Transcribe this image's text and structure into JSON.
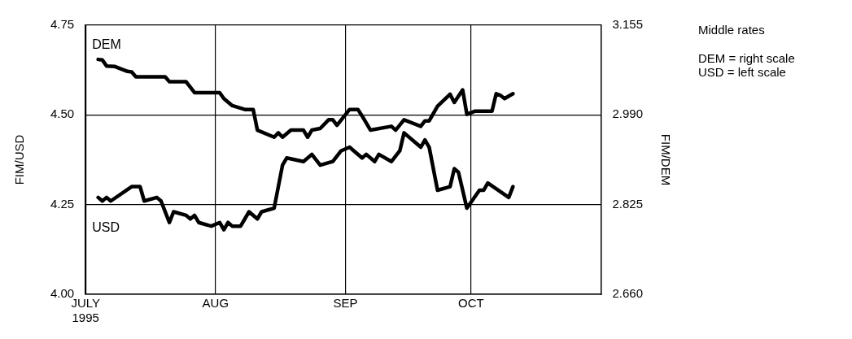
{
  "chart_data": {
    "type": "line",
    "ylabel": "FIM/USD",
    "y2label": "FIM/DEM",
    "annotations": [
      "Middle rates",
      "DEM = right scale\nUSD = left scale"
    ],
    "xlim": [
      "1995-07-01",
      "1995-11-01"
    ],
    "xticks": [
      {
        "value": "1995-07-01",
        "label": "JULY\n1995"
      },
      {
        "value": "1995-08-01",
        "label": "AUG"
      },
      {
        "value": "1995-09-01",
        "label": "SEP"
      },
      {
        "value": "1995-10-01",
        "label": "OCT"
      }
    ],
    "ylim": [
      4.0,
      4.75
    ],
    "yticks": [
      {
        "value": 4.0,
        "label": "4.00"
      },
      {
        "value": 4.25,
        "label": "4.25"
      },
      {
        "value": 4.5,
        "label": "4.50"
      },
      {
        "value": 4.75,
        "label": "4.75"
      }
    ],
    "y2lim": [
      2.66,
      3.155
    ],
    "y2ticks": [
      {
        "value": 2.66,
        "label": "2.660"
      },
      {
        "value": 2.825,
        "label": "2.825"
      },
      {
        "value": 2.99,
        "label": "2.990"
      },
      {
        "value": 3.155,
        "label": "3.155"
      }
    ],
    "grid": true,
    "legend": false,
    "marker": "none",
    "line_style": "solid",
    "series": [
      {
        "name": "DEM",
        "color": "#000000",
        "axis": "y2",
        "x": [
          "1995-07-04",
          "1995-07-05",
          "1995-07-06",
          "1995-07-08",
          "1995-07-11",
          "1995-07-12",
          "1995-07-13",
          "1995-07-20",
          "1995-07-21",
          "1995-07-25",
          "1995-07-27",
          "1995-08-02",
          "1995-08-03",
          "1995-08-05",
          "1995-08-08",
          "1995-08-10",
          "1995-08-11",
          "1995-08-15",
          "1995-08-16",
          "1995-08-17",
          "1995-08-19",
          "1995-08-22",
          "1995-08-23",
          "1995-08-24",
          "1995-08-26",
          "1995-08-28",
          "1995-08-29",
          "1995-08-30",
          "1995-09-02",
          "1995-09-04",
          "1995-09-05",
          "1995-09-07",
          "1995-09-12",
          "1995-09-13",
          "1995-09-15",
          "1995-09-19",
          "1995-09-20",
          "1995-09-21",
          "1995-09-23",
          "1995-09-26",
          "1995-09-27",
          "1995-09-29",
          "1995-09-30",
          "1995-10-02",
          "1995-10-06",
          "1995-10-07",
          "1995-10-08",
          "1995-10-09",
          "1995-10-11"
        ],
        "values": [
          3.092,
          3.091,
          3.08,
          3.079,
          3.07,
          3.069,
          3.06,
          3.06,
          3.051,
          3.051,
          3.031,
          3.031,
          3.02,
          3.007,
          3.0,
          3.0,
          2.962,
          2.949,
          2.957,
          2.949,
          2.962,
          2.962,
          2.949,
          2.962,
          2.965,
          2.981,
          2.981,
          2.971,
          3.0,
          3.0,
          2.988,
          2.962,
          2.969,
          2.962,
          2.981,
          2.969,
          2.979,
          2.979,
          3.006,
          3.028,
          3.013,
          3.036,
          2.991,
          2.997,
          2.997,
          3.029,
          3.026,
          3.02,
          3.029
        ]
      },
      {
        "name": "USD",
        "color": "#000000",
        "x": [
          "1995-07-04",
          "1995-07-05",
          "1995-07-06",
          "1995-07-07",
          "1995-07-12",
          "1995-07-14",
          "1995-07-15",
          "1995-07-18",
          "1995-07-19",
          "1995-07-21",
          "1995-07-22",
          "1995-07-25",
          "1995-07-26",
          "1995-07-27",
          "1995-07-28",
          "1995-07-31",
          "1995-08-02",
          "1995-08-03",
          "1995-08-04",
          "1995-08-05",
          "1995-08-07",
          "1995-08-09",
          "1995-08-11",
          "1995-08-12",
          "1995-08-15",
          "1995-08-17",
          "1995-08-18",
          "1995-08-22",
          "1995-08-24",
          "1995-08-26",
          "1995-08-29",
          "1995-08-31",
          "1995-09-02",
          "1995-09-03",
          "1995-09-05",
          "1995-09-06",
          "1995-09-08",
          "1995-09-09",
          "1995-09-12",
          "1995-09-14",
          "1995-09-15",
          "1995-09-19",
          "1995-09-20",
          "1995-09-21",
          "1995-09-23",
          "1995-09-26",
          "1995-09-27",
          "1995-09-28",
          "1995-09-30",
          "1995-10-03",
          "1995-10-04",
          "1995-10-05",
          "1995-10-10",
          "1995-10-11"
        ],
        "values": [
          4.27,
          4.26,
          4.27,
          4.26,
          4.3,
          4.3,
          4.26,
          4.27,
          4.26,
          4.2,
          4.23,
          4.22,
          4.21,
          4.22,
          4.2,
          4.19,
          4.2,
          4.18,
          4.2,
          4.19,
          4.19,
          4.23,
          4.21,
          4.23,
          4.24,
          4.36,
          4.38,
          4.37,
          4.39,
          4.36,
          4.37,
          4.4,
          4.41,
          4.4,
          4.38,
          4.39,
          4.37,
          4.39,
          4.37,
          4.4,
          4.45,
          4.41,
          4.43,
          4.41,
          4.29,
          4.3,
          4.35,
          4.34,
          4.24,
          4.29,
          4.29,
          4.31,
          4.27,
          4.3
        ]
      }
    ]
  }
}
